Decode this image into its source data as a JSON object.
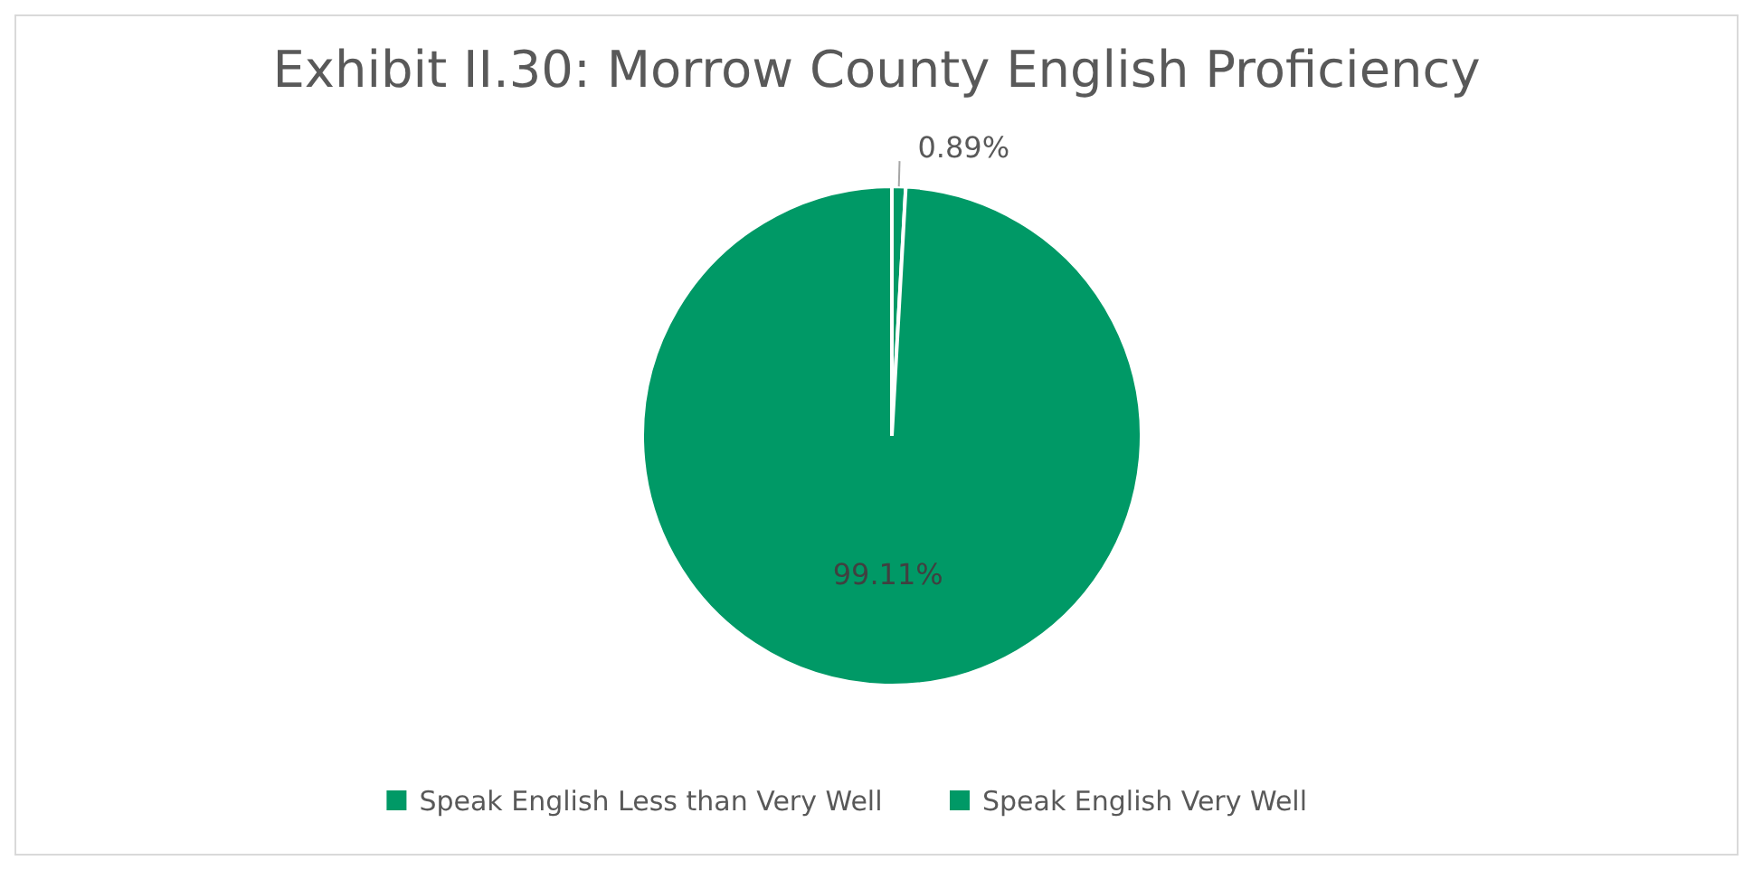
{
  "chart_data": {
    "type": "pie",
    "title": "Exhibit II.30: Morrow County English Proficiency",
    "categories": [
      "Speak English Less than Very Well",
      "Speak English Very Well"
    ],
    "values": [
      0.89,
      99.11
    ],
    "value_labels": [
      "0.89%",
      "99.11%"
    ],
    "colors": [
      "#009966",
      "#009966"
    ],
    "legend": "bottom"
  }
}
